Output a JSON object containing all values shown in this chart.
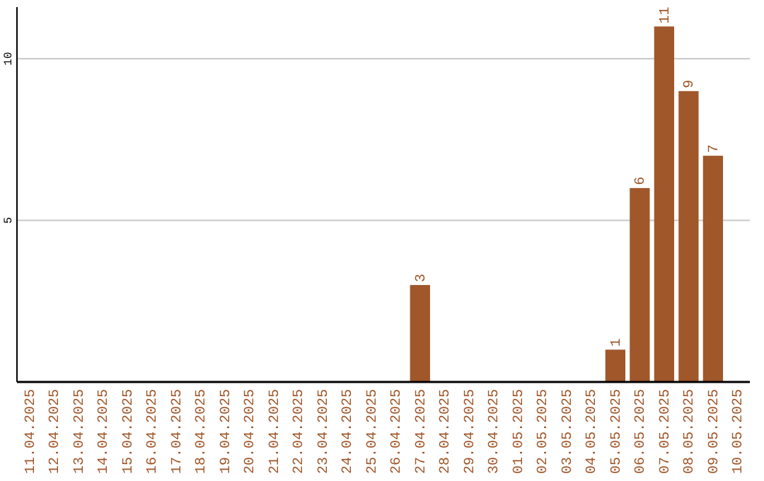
{
  "chart_data": {
    "type": "bar",
    "categories": [
      "11.04.2025",
      "12.04.2025",
      "13.04.2025",
      "14.04.2025",
      "15.04.2025",
      "16.04.2025",
      "17.04.2025",
      "18.04.2025",
      "19.04.2025",
      "20.04.2025",
      "21.04.2025",
      "22.04.2025",
      "23.04.2025",
      "24.04.2025",
      "25.04.2025",
      "26.04.2025",
      "27.04.2025",
      "28.04.2025",
      "29.04.2025",
      "30.04.2025",
      "01.05.2025",
      "02.05.2025",
      "03.05.2025",
      "04.05.2025",
      "05.05.2025",
      "06.05.2025",
      "07.05.2025",
      "08.05.2025",
      "09.05.2025",
      "10.05.2025"
    ],
    "values": [
      0,
      0,
      0,
      0,
      0,
      0,
      0,
      0,
      0,
      0,
      0,
      0,
      0,
      0,
      0,
      0,
      3,
      0,
      0,
      0,
      0,
      0,
      0,
      0,
      1,
      6,
      11,
      9,
      7,
      0
    ],
    "value_labels": [
      null,
      null,
      null,
      null,
      null,
      null,
      null,
      null,
      null,
      null,
      null,
      null,
      null,
      null,
      null,
      null,
      "3",
      null,
      null,
      null,
      null,
      null,
      null,
      null,
      "1",
      "6",
      "11",
      "9",
      "7",
      null
    ],
    "color": "#a0572a",
    "ylim": [
      0,
      11.6
    ],
    "yticks": [
      5,
      10
    ],
    "grid": "y"
  }
}
